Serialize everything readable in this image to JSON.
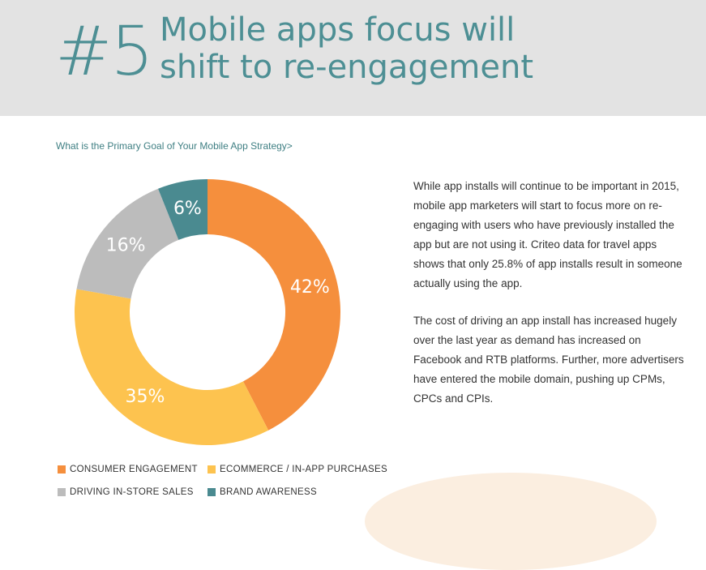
{
  "header": {
    "number": "#5",
    "title": "Mobile apps focus will shift to re-engagement"
  },
  "chart_data": {
    "type": "pie",
    "title": "What is the Primary Goal of Your Mobile App Strategy>",
    "donut": true,
    "slices": [
      {
        "label": "CONSUMER ENGAGEMENT",
        "value": 42,
        "display": "42%",
        "color": "#f58f3d"
      },
      {
        "label": "ECOMMERCE / IN-APP PURCHASES",
        "value": 35,
        "display": "35%",
        "color": "#fdc34f"
      },
      {
        "label": "DRIVING IN-STORE SALES",
        "value": 16,
        "display": "16%",
        "color": "#bcbcbc"
      },
      {
        "label": "BRAND AWARENESS",
        "value": 6,
        "display": "6%",
        "color": "#4a8a90"
      }
    ]
  },
  "body": {
    "paragraph1": "While app installs will continue to be important in 2015, mobile app marketers will start to focus more on re-engaging with users who have previously installed the app but are not using it. Criteo data for travel apps shows that only 25.8% of app installs result in someone actually using the app.",
    "paragraph2": "The cost of driving an app install has increased hugely over the last year as demand has increased on Facebook and RTB platforms. Further, more advertisers have entered the mobile domain, pushing up CPMs, CPCs and CPIs."
  }
}
